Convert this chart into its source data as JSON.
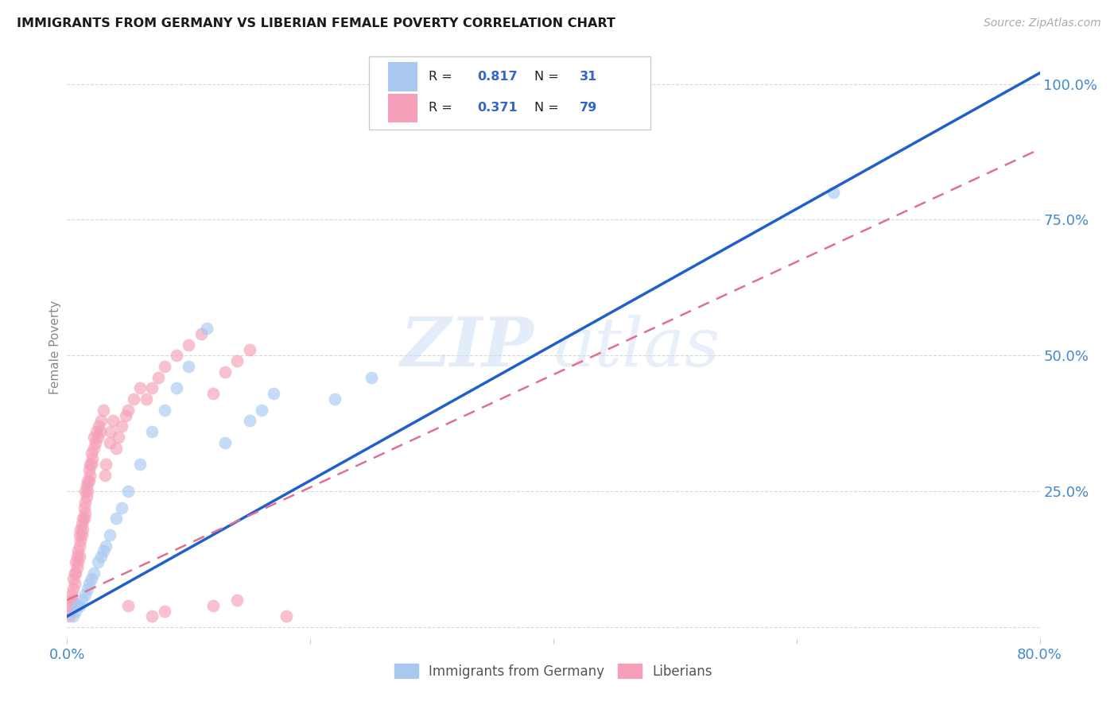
{
  "title": "IMMIGRANTS FROM GERMANY VS LIBERIAN FEMALE POVERTY CORRELATION CHART",
  "source": "Source: ZipAtlas.com",
  "ylabel": "Female Poverty",
  "watermark_zip": "ZIP",
  "watermark_atlas": "atlas",
  "xlim": [
    0.0,
    0.8
  ],
  "ylim": [
    -0.02,
    1.05
  ],
  "xtick_pos": [
    0.0,
    0.2,
    0.4,
    0.6,
    0.8
  ],
  "xtick_labels": [
    "0.0%",
    "",
    "",
    "",
    "80.0%"
  ],
  "ytick_pos": [
    0.0,
    0.25,
    0.5,
    0.75,
    1.0
  ],
  "ytick_labels_right": [
    "",
    "25.0%",
    "50.0%",
    "75.0%",
    "100.0%"
  ],
  "germany_color": "#a8c8f0",
  "liberian_color": "#f5a0b8",
  "germany_line_color": "#2060cc",
  "liberian_line_color": "#e07090",
  "background_color": "#ffffff",
  "grid_color": "#d8d8d8",
  "title_color": "#1a1a1a",
  "tick_color": "#4488cc",
  "legend_label_germany": "Immigrants from Germany",
  "legend_label_liberian": "Liberians",
  "germany_R": "0.817",
  "germany_N": "31",
  "liberian_R": "0.371",
  "liberian_N": "79",
  "germany_line_x0": 0.0,
  "germany_line_y0": 0.02,
  "germany_line_x1": 0.8,
  "germany_line_y1": 1.02,
  "liberian_line_x0": 0.0,
  "liberian_line_y0": 0.05,
  "liberian_line_x1": 0.8,
  "liberian_line_y1": 0.88,
  "germany_scatter_x": [
    0.005,
    0.007,
    0.008,
    0.01,
    0.012,
    0.015,
    0.017,
    0.018,
    0.02,
    0.022,
    0.025,
    0.028,
    0.03,
    0.032,
    0.035,
    0.04,
    0.045,
    0.05,
    0.06,
    0.07,
    0.08,
    0.09,
    0.1,
    0.115,
    0.13,
    0.15,
    0.16,
    0.17,
    0.22,
    0.25,
    0.63
  ],
  "germany_scatter_y": [
    0.02,
    0.03,
    0.04,
    0.04,
    0.05,
    0.06,
    0.07,
    0.08,
    0.09,
    0.1,
    0.12,
    0.13,
    0.14,
    0.15,
    0.17,
    0.2,
    0.22,
    0.25,
    0.3,
    0.36,
    0.4,
    0.44,
    0.48,
    0.55,
    0.34,
    0.38,
    0.4,
    0.43,
    0.42,
    0.46,
    0.8
  ],
  "liberian_scatter_x": [
    0.002,
    0.003,
    0.003,
    0.004,
    0.004,
    0.005,
    0.005,
    0.005,
    0.006,
    0.006,
    0.007,
    0.007,
    0.008,
    0.008,
    0.009,
    0.009,
    0.01,
    0.01,
    0.01,
    0.011,
    0.011,
    0.012,
    0.012,
    0.013,
    0.013,
    0.014,
    0.014,
    0.015,
    0.015,
    0.015,
    0.016,
    0.016,
    0.017,
    0.017,
    0.018,
    0.018,
    0.019,
    0.019,
    0.02,
    0.02,
    0.021,
    0.022,
    0.022,
    0.023,
    0.024,
    0.025,
    0.026,
    0.027,
    0.028,
    0.03,
    0.031,
    0.032,
    0.035,
    0.036,
    0.038,
    0.04,
    0.042,
    0.045,
    0.048,
    0.05,
    0.055,
    0.06,
    0.065,
    0.07,
    0.075,
    0.08,
    0.09,
    0.1,
    0.11,
    0.12,
    0.13,
    0.14,
    0.15,
    0.05,
    0.07,
    0.08,
    0.12,
    0.14,
    0.18
  ],
  "liberian_scatter_y": [
    0.02,
    0.03,
    0.05,
    0.04,
    0.06,
    0.05,
    0.07,
    0.09,
    0.08,
    0.1,
    0.1,
    0.12,
    0.11,
    0.13,
    0.12,
    0.14,
    0.13,
    0.15,
    0.17,
    0.16,
    0.18,
    0.17,
    0.19,
    0.18,
    0.2,
    0.2,
    0.22,
    0.21,
    0.23,
    0.25,
    0.24,
    0.26,
    0.25,
    0.27,
    0.27,
    0.29,
    0.28,
    0.3,
    0.3,
    0.32,
    0.31,
    0.33,
    0.35,
    0.34,
    0.36,
    0.35,
    0.37,
    0.36,
    0.38,
    0.4,
    0.28,
    0.3,
    0.34,
    0.36,
    0.38,
    0.33,
    0.35,
    0.37,
    0.39,
    0.4,
    0.42,
    0.44,
    0.42,
    0.44,
    0.46,
    0.48,
    0.5,
    0.52,
    0.54,
    0.43,
    0.47,
    0.49,
    0.51,
    0.04,
    0.02,
    0.03,
    0.04,
    0.05,
    0.02
  ]
}
